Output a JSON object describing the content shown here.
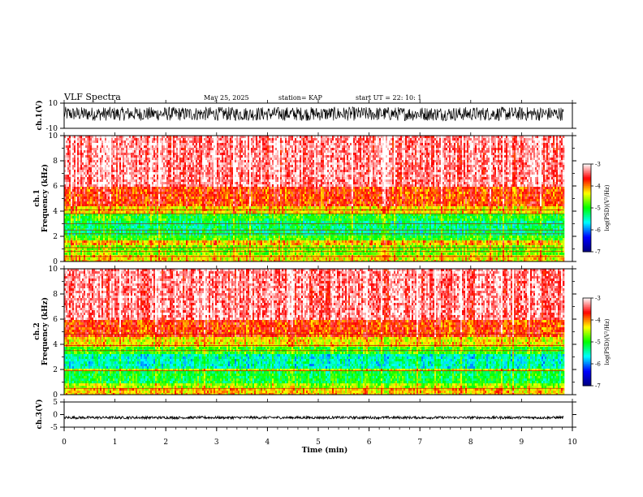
{
  "header": {
    "title": "VLF Spectra",
    "date": "May 25, 2025",
    "station": "station= KAP",
    "start": "start  UT =    22: 10: 1"
  },
  "chart_data": {
    "type": "spectrogram",
    "x": {
      "label": "Time  (min)",
      "range": [
        0,
        10
      ],
      "ticks": [
        "0",
        "1",
        "2",
        "3",
        "4",
        "5",
        "6",
        "7",
        "8",
        "9",
        "10"
      ],
      "data_end": 9.83
    },
    "panels": [
      {
        "id": "ch1-waveform",
        "type": "waveform",
        "ylabel": "ch.1(V)",
        "ylim": [
          -10,
          10
        ],
        "ticks": [
          "10",
          "-10"
        ],
        "baseline": 0,
        "envelope": [
          -4,
          7
        ]
      },
      {
        "id": "ch1-spectrogram",
        "type": "spectrogram",
        "ylabel_line1": "ch.1",
        "ylabel_line2": "Frequency  (kHz)",
        "ylim": [
          0,
          10
        ],
        "ticks": [
          "0",
          "2",
          "4",
          "6",
          "8",
          "10"
        ],
        "bands_khz": [
          {
            "from": 0.0,
            "to": 0.6,
            "level": -4.3
          },
          {
            "from": 0.6,
            "to": 1.2,
            "level": -4.7
          },
          {
            "from": 1.2,
            "to": 1.6,
            "level": -4.2
          },
          {
            "from": 1.6,
            "to": 2.0,
            "level": -4.9
          },
          {
            "from": 2.0,
            "to": 3.2,
            "level": -5.3
          },
          {
            "from": 3.2,
            "to": 3.8,
            "level": -5.0
          },
          {
            "from": 3.8,
            "to": 4.4,
            "level": -4.3
          },
          {
            "from": 4.4,
            "to": 6.0,
            "level": -3.8
          },
          {
            "from": 6.0,
            "to": 10.0,
            "level": -3.3
          }
        ],
        "lines_khz": [
          0.4,
          0.8,
          1.1,
          2.2,
          2.5,
          3.0,
          3.8,
          4.1
        ]
      },
      {
        "id": "ch2-spectrogram",
        "type": "spectrogram",
        "ylabel_line1": "ch.2",
        "ylabel_line2": "Frequency  (kHz)",
        "ylim": [
          0,
          10
        ],
        "ticks": [
          "0",
          "2",
          "4",
          "6",
          "8",
          "10"
        ],
        "bands_khz": [
          {
            "from": 0.0,
            "to": 0.5,
            "level": -4.2
          },
          {
            "from": 0.5,
            "to": 1.0,
            "level": -4.6
          },
          {
            "from": 1.0,
            "to": 1.8,
            "level": -5.1
          },
          {
            "from": 1.8,
            "to": 2.1,
            "level": -4.5
          },
          {
            "from": 2.1,
            "to": 3.3,
            "level": -5.5
          },
          {
            "from": 3.3,
            "to": 3.8,
            "level": -4.9
          },
          {
            "from": 3.8,
            "to": 4.5,
            "level": -4.3
          },
          {
            "from": 4.5,
            "to": 6.0,
            "level": -3.8
          },
          {
            "from": 6.0,
            "to": 10.0,
            "level": -3.3
          }
        ],
        "lines_khz": [
          0.5,
          1.9,
          3.5,
          3.9,
          4.8
        ]
      },
      {
        "id": "ch3-waveform",
        "type": "waveform",
        "ylabel": "ch.3(V)",
        "ylim": [
          -5,
          5
        ],
        "ticks": [
          "5",
          "0",
          "-5"
        ],
        "baseline": -1.2,
        "envelope": [
          -1.7,
          -0.7
        ]
      }
    ],
    "colorbar": {
      "label": "log(PSD)(V²/Hz)",
      "range": [
        -7,
        -3
      ],
      "ticks": [
        "-3",
        "-4",
        "-5",
        "-6",
        "-7"
      ],
      "colormap": [
        "#000080",
        "#0000ff",
        "#00ffff",
        "#00ff00",
        "#ffff00",
        "#ff0000",
        "#ffffff"
      ]
    }
  }
}
